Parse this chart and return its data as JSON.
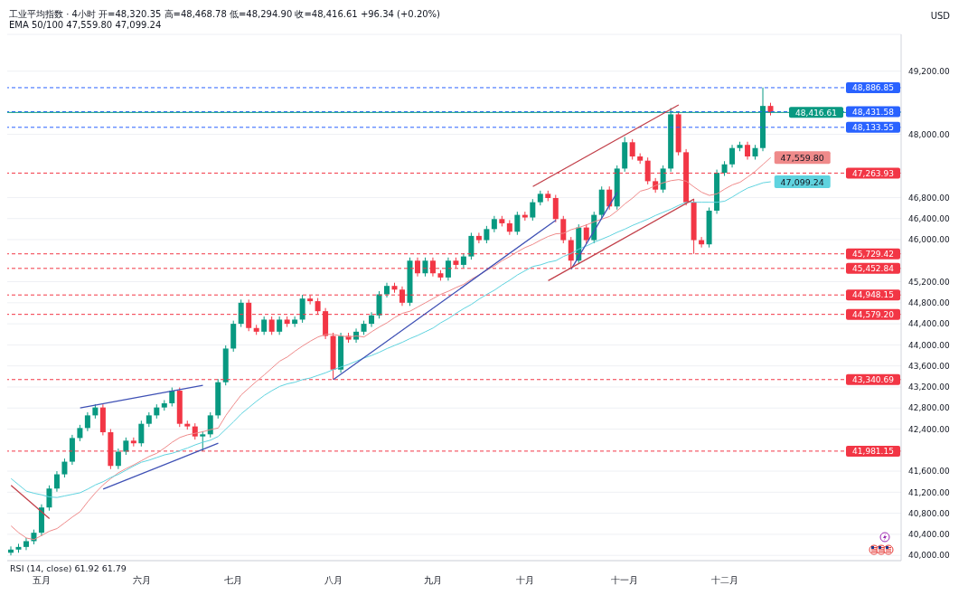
{
  "chart_data": {
    "type": "candlestick",
    "title": "工业平均指数 · 4小时 开=48,320.35 高=48,468.78 低=48,294.90 收=48,416.61 +96.34 (+0.20%)",
    "subtitle": "EMA 50/100 47,559.80 47,099.24",
    "ylabel": "USD",
    "categories": [
      null,
      null,
      null,
      null,
      "五月",
      null,
      null,
      null,
      null,
      null,
      null,
      null,
      null,
      null,
      null,
      null,
      null,
      "六月",
      null,
      null,
      null,
      null,
      null,
      null,
      null,
      null,
      null,
      null,
      null,
      "七月",
      null,
      null,
      null,
      null,
      null,
      null,
      null,
      null,
      null,
      null,
      null,
      null,
      "八月",
      null,
      null,
      null,
      null,
      null,
      null,
      null,
      null,
      null,
      null,
      null,
      null,
      "九月",
      null,
      null,
      null,
      null,
      null,
      null,
      null,
      null,
      null,
      null,
      null,
      "十月",
      null,
      null,
      null,
      null,
      null,
      null,
      null,
      null,
      null,
      null,
      null,
      null,
      "十一月",
      null,
      null,
      null,
      null,
      null,
      null,
      null,
      null,
      null,
      null,
      null,
      null,
      "十二月",
      null,
      null,
      null,
      null,
      null,
      null
    ],
    "ohlc": [
      [
        40050,
        40170,
        40000,
        40110
      ],
      [
        40110,
        40220,
        40050,
        40160
      ],
      [
        40160,
        40330,
        40100,
        40270
      ],
      [
        40270,
        40490,
        40210,
        40430
      ],
      [
        40430,
        40970,
        40370,
        40910
      ],
      [
        40910,
        41330,
        40850,
        41270
      ],
      [
        41270,
        41600,
        41210,
        41540
      ],
      [
        41540,
        41840,
        41480,
        41780
      ],
      [
        41780,
        42290,
        41720,
        42230
      ],
      [
        42230,
        42480,
        42170,
        42420
      ],
      [
        42420,
        42720,
        42360,
        42660
      ],
      [
        42660,
        42870,
        42600,
        42810
      ],
      [
        42810,
        42870,
        42280,
        42340
      ],
      [
        42340,
        42400,
        41640,
        41700
      ],
      [
        41700,
        42030,
        41640,
        41970
      ],
      [
        41970,
        42240,
        41910,
        42180
      ],
      [
        42180,
        42240,
        42070,
        42130
      ],
      [
        42130,
        42560,
        42070,
        42500
      ],
      [
        42500,
        42720,
        42440,
        42660
      ],
      [
        42660,
        42870,
        42600,
        42810
      ],
      [
        42810,
        42950,
        42750,
        42890
      ],
      [
        42890,
        43190,
        42830,
        43130
      ],
      [
        43130,
        43190,
        42440,
        42500
      ],
      [
        42500,
        42560,
        42390,
        42450
      ],
      [
        42450,
        42510,
        42200,
        42260
      ],
      [
        42260,
        42360,
        41980,
        42300
      ],
      [
        42300,
        42720,
        42240,
        42660
      ],
      [
        42660,
        43350,
        42600,
        43290
      ],
      [
        43290,
        43990,
        43230,
        43930
      ],
      [
        43930,
        44460,
        43870,
        44400
      ],
      [
        44400,
        44860,
        44340,
        44800
      ],
      [
        44800,
        44860,
        44260,
        44320
      ],
      [
        44320,
        44380,
        44190,
        44250
      ],
      [
        44250,
        44540,
        44190,
        44480
      ],
      [
        44480,
        44540,
        44190,
        44250
      ],
      [
        44250,
        44540,
        44190,
        44480
      ],
      [
        44480,
        44540,
        44340,
        44400
      ],
      [
        44400,
        44540,
        44340,
        44480
      ],
      [
        44480,
        44950,
        44420,
        44880
      ],
      [
        44880,
        44940,
        44770,
        44830
      ],
      [
        44830,
        44890,
        44580,
        44640
      ],
      [
        44640,
        44700,
        44110,
        44170
      ],
      [
        44170,
        44230,
        43340,
        43530
      ],
      [
        43530,
        44230,
        43470,
        44170
      ],
      [
        44170,
        44230,
        44040,
        44100
      ],
      [
        44100,
        44310,
        44040,
        44250
      ],
      [
        44250,
        44460,
        44190,
        44400
      ],
      [
        44400,
        44620,
        44340,
        44560
      ],
      [
        44560,
        45020,
        44500,
        44960
      ],
      [
        44960,
        45180,
        44900,
        45120
      ],
      [
        45120,
        45180,
        44990,
        45050
      ],
      [
        45050,
        45110,
        44740,
        44800
      ],
      [
        44800,
        45660,
        44740,
        45600
      ],
      [
        45600,
        45660,
        45300,
        45360
      ],
      [
        45360,
        45660,
        45300,
        45600
      ],
      [
        45600,
        45660,
        45300,
        45360
      ],
      [
        45360,
        45420,
        45220,
        45280
      ],
      [
        45280,
        45660,
        45220,
        45600
      ],
      [
        45600,
        45660,
        45460,
        45520
      ],
      [
        45520,
        45740,
        45460,
        45680
      ],
      [
        45680,
        46130,
        45620,
        46070
      ],
      [
        46070,
        46130,
        45930,
        45990
      ],
      [
        45990,
        46260,
        45930,
        46200
      ],
      [
        46200,
        46450,
        46140,
        46390
      ],
      [
        46390,
        46450,
        46250,
        46310
      ],
      [
        46310,
        46370,
        46090,
        46150
      ],
      [
        46150,
        46530,
        46090,
        46470
      ],
      [
        46470,
        46530,
        46360,
        46420
      ],
      [
        46420,
        46770,
        46360,
        46710
      ],
      [
        46710,
        46930,
        46650,
        46870
      ],
      [
        46870,
        46930,
        46730,
        46790
      ],
      [
        46790,
        46850,
        46330,
        46390
      ],
      [
        46390,
        46450,
        45930,
        45990
      ],
      [
        45990,
        46050,
        45450,
        45600
      ],
      [
        45600,
        46290,
        45540,
        46230
      ],
      [
        46230,
        46290,
        45930,
        45990
      ],
      [
        45990,
        46530,
        45930,
        46470
      ],
      [
        46470,
        47010,
        46410,
        46950
      ],
      [
        46950,
        47010,
        46570,
        46630
      ],
      [
        46630,
        47410,
        46570,
        47350
      ],
      [
        47350,
        47950,
        47290,
        47850
      ],
      [
        47850,
        47910,
        47520,
        47580
      ],
      [
        47580,
        47640,
        47440,
        47500
      ],
      [
        47500,
        47560,
        47050,
        47110
      ],
      [
        47110,
        47170,
        46890,
        46950
      ],
      [
        46950,
        47410,
        46890,
        47350
      ],
      [
        47350,
        48500,
        47290,
        48380
      ],
      [
        48380,
        48440,
        47600,
        47660
      ],
      [
        47660,
        47720,
        46650,
        46710
      ],
      [
        46710,
        46770,
        45730,
        45990
      ],
      [
        45990,
        46050,
        45850,
        45910
      ],
      [
        45910,
        46610,
        45850,
        46550
      ],
      [
        46550,
        47330,
        46490,
        47270
      ],
      [
        47270,
        47490,
        47210,
        47430
      ],
      [
        47430,
        47800,
        47370,
        47740
      ],
      [
        47740,
        47860,
        47680,
        47800
      ],
      [
        47800,
        47860,
        47520,
        47580
      ],
      [
        47580,
        47800,
        47520,
        47740
      ],
      [
        47740,
        48890,
        47680,
        48540
      ],
      [
        48540,
        48600,
        48360,
        48420
      ]
    ],
    "colors": [
      "#089981",
      "#089981",
      "#089981",
      "#089981",
      "#089981",
      "#089981",
      "#089981",
      "#089981",
      "#089981",
      "#089981",
      "#089981",
      "#089981",
      "#f23645",
      "#f23645",
      "#089981",
      "#089981",
      "#f23645",
      "#089981",
      "#089981",
      "#089981",
      "#089981",
      "#089981",
      "#f23645",
      "#f23645",
      "#f23645",
      "#089981",
      "#089981",
      "#089981",
      "#089981",
      "#089981",
      "#089981",
      "#f23645",
      "#f23645",
      "#089981",
      "#f23645",
      "#089981",
      "#f23645",
      "#089981",
      "#089981",
      "#f23645",
      "#f23645",
      "#f23645",
      "#f23645",
      "#089981",
      "#f23645",
      "#089981",
      "#089981",
      "#089981",
      "#089981",
      "#089981",
      "#f23645",
      "#f23645",
      "#089981",
      "#f23645",
      "#089981",
      "#f23645",
      "#f23645",
      "#089981",
      "#f23645",
      "#089981",
      "#089981",
      "#f23645",
      "#089981",
      "#089981",
      "#f23645",
      "#f23645",
      "#089981",
      "#f23645",
      "#089981",
      "#089981",
      "#f23645",
      "#f23645",
      "#f23645",
      "#f23645",
      "#089981",
      "#f23645",
      "#089981",
      "#089981",
      "#f23645",
      "#089981",
      "#089981",
      "#f23645",
      "#f23645",
      "#f23645",
      "#f23645",
      "#089981",
      "#089981",
      "#f23645",
      "#f23645",
      "#f23645",
      "#f23645",
      "#089981",
      "#089981",
      "#089981",
      "#089981",
      "#089981",
      "#f23645",
      "#089981",
      "#089981",
      "#f23645"
    ],
    "series": [
      {
        "type": "line",
        "color": "#ef8a8a",
        "values": [
          40560,
          40430,
          40330,
          40300,
          40380,
          40460,
          40510,
          40620,
          40730,
          40830,
          41020,
          41190,
          41340,
          41460,
          41570,
          41650,
          41720,
          41800,
          41880,
          41940,
          42040,
          42150,
          42240,
          42290,
          42320,
          42350,
          42390,
          42420,
          42660,
          42860,
          43050,
          43180,
          43310,
          43430,
          43560,
          43690,
          43770,
          43880,
          43980,
          44070,
          44150,
          44200,
          44200,
          44170,
          44150,
          44170,
          44150,
          44250,
          44340,
          44420,
          44520,
          44600,
          44640,
          44720,
          44800,
          44880,
          44960,
          45020,
          45090,
          45150,
          45250,
          45330,
          45420,
          45500,
          45600,
          45680,
          45770,
          45850,
          45910,
          45990,
          46060,
          46110,
          46120,
          46190,
          46230,
          46280,
          46340,
          46390,
          46440,
          46550,
          46680,
          46790,
          46920,
          46960,
          47030,
          47080,
          47120,
          47140,
          47110,
          47000,
          46900,
          46840,
          46870,
          46960,
          47040,
          47090,
          47190,
          47300,
          47430,
          47559.8
        ],
        "value_labels": [
          null,
          null,
          null,
          null,
          null,
          null,
          null,
          null,
          null,
          null,
          null,
          null,
          null,
          null,
          null,
          null,
          null,
          null,
          null,
          null,
          null,
          null,
          null,
          null,
          null,
          null,
          null,
          null,
          null,
          null,
          null,
          null,
          null,
          null,
          null,
          null,
          null,
          null,
          null,
          null,
          null,
          null,
          null,
          null,
          null,
          null,
          null,
          null,
          null,
          null,
          null,
          null,
          null,
          null,
          null,
          null,
          null,
          null,
          null,
          null,
          null,
          null,
          null,
          null,
          null,
          null,
          null,
          null,
          null,
          null,
          null,
          null,
          null,
          null,
          null,
          null,
          null,
          null,
          null,
          null,
          null,
          null,
          null,
          null,
          null,
          null,
          null,
          null,
          null,
          null,
          null,
          null,
          null,
          null,
          null,
          null,
          null,
          null,
          null,
          "47,559.80"
        ]
      },
      {
        "type": "line",
        "color": "#5fd3df",
        "values": [
          41460,
          41340,
          41220,
          41180,
          41150,
          41110,
          41100,
          41130,
          41160,
          41190,
          41260,
          41340,
          41400,
          41480,
          41540,
          41620,
          41700,
          41770,
          41810,
          41860,
          41910,
          41940,
          41990,
          42040,
          42100,
          42150,
          42190,
          42260,
          42400,
          42540,
          42690,
          42810,
          42930,
          43040,
          43130,
          43210,
          43260,
          43290,
          43340,
          43370,
          43420,
          43470,
          43530,
          43580,
          43630,
          43690,
          43750,
          43800,
          43860,
          43930,
          43990,
          44050,
          44120,
          44180,
          44250,
          44320,
          44420,
          44500,
          44600,
          44690,
          44770,
          44870,
          44960,
          45040,
          45140,
          45230,
          45330,
          45410,
          45490,
          45520,
          45570,
          45600,
          45680,
          45740,
          45820,
          45880,
          45950,
          46010,
          46070,
          46140,
          46200,
          46270,
          46330,
          46390,
          46460,
          46520,
          46580,
          46650,
          46710,
          46710,
          46710,
          46710,
          46710,
          46730,
          46810,
          46900,
          46980,
          47030,
          47080,
          47099.24
        ],
        "value_labels": [
          null,
          null,
          null,
          null,
          null,
          null,
          null,
          null,
          null,
          null,
          null,
          null,
          null,
          null,
          null,
          null,
          null,
          null,
          null,
          null,
          null,
          null,
          null,
          null,
          null,
          null,
          null,
          null,
          null,
          null,
          null,
          null,
          null,
          null,
          null,
          null,
          null,
          null,
          null,
          null,
          null,
          null,
          null,
          null,
          null,
          null,
          null,
          null,
          null,
          null,
          null,
          null,
          null,
          null,
          null,
          null,
          null,
          null,
          null,
          null,
          null,
          null,
          null,
          null,
          null,
          null,
          null,
          null,
          null,
          null,
          null,
          null,
          null,
          null,
          null,
          null,
          null,
          null,
          null,
          null,
          null,
          null,
          null,
          null,
          null,
          null,
          null,
          null,
          null,
          null,
          null,
          null,
          null,
          null,
          null,
          null,
          null,
          null,
          null,
          "47,099.24"
        ]
      },
      {
        "type": "line",
        "color": "#c2404a",
        "values": [
          41330,
          null,
          null,
          null,
          null,
          40700,
          null,
          null,
          null,
          null,
          null,
          null,
          null,
          null,
          null,
          null,
          null,
          null,
          null,
          null,
          null,
          null,
          null,
          null,
          null,
          null,
          null,
          null,
          null,
          null,
          null,
          null,
          null,
          null,
          null,
          null,
          null,
          null,
          null,
          null,
          null,
          null,
          null,
          null,
          null,
          null,
          null,
          null,
          null,
          null,
          null,
          null,
          null,
          null,
          null,
          null,
          null,
          null,
          null,
          null,
          null,
          null,
          null,
          null,
          null,
          null,
          null,
          null,
          null,
          null,
          null,
          null,
          null,
          null,
          null,
          null,
          null,
          null,
          null,
          null,
          null,
          null,
          null,
          null,
          null,
          null,
          null,
          null,
          null,
          null,
          null,
          null,
          null,
          null,
          null,
          null,
          null,
          null,
          null,
          null
        ]
      },
      {
        "type": "line",
        "color": "#3f51b5",
        "values": [
          null,
          null,
          null,
          null,
          null,
          null,
          null,
          null,
          null,
          42800,
          null,
          null,
          null,
          null,
          null,
          null,
          null,
          null,
          null,
          null,
          null,
          null,
          null,
          null,
          null,
          43230,
          null,
          null,
          null,
          null,
          null,
          null,
          null,
          null,
          null,
          null,
          null,
          null,
          null,
          null,
          null,
          null,
          null,
          null,
          null,
          null,
          null,
          null,
          null,
          null,
          null,
          null,
          null,
          null,
          null,
          null,
          null,
          null,
          null,
          null,
          null,
          null,
          null,
          null,
          null,
          null,
          null,
          null,
          null,
          null,
          null,
          null,
          null,
          null,
          null,
          null,
          null,
          null,
          null,
          null,
          null,
          null,
          null,
          null,
          null,
          null,
          null,
          null,
          null,
          null,
          null,
          null,
          null,
          null,
          null,
          null,
          null,
          null,
          null,
          null
        ]
      },
      {
        "type": "line",
        "color": "#3f51b5",
        "values": [
          null,
          null,
          null,
          null,
          null,
          null,
          null,
          null,
          null,
          null,
          null,
          null,
          41260,
          null,
          null,
          null,
          null,
          null,
          null,
          null,
          null,
          null,
          null,
          null,
          null,
          null,
          null,
          42130,
          null,
          null,
          null,
          null,
          null,
          null,
          null,
          null,
          null,
          null,
          null,
          null,
          null,
          null,
          null,
          null,
          null,
          null,
          null,
          null,
          null,
          null,
          null,
          null,
          null,
          null,
          null,
          null,
          null,
          null,
          null,
          null,
          null,
          null,
          null,
          null,
          null,
          null,
          null,
          null,
          null,
          null,
          null,
          null,
          null,
          null,
          null,
          null,
          null,
          null,
          null,
          null,
          null,
          null,
          null,
          null,
          null,
          null,
          null,
          null,
          null,
          null,
          null,
          null,
          null,
          null,
          null,
          null,
          null,
          null,
          null,
          null
        ]
      },
      {
        "type": "line",
        "color": "#3f51b5",
        "values": [
          null,
          null,
          null,
          null,
          null,
          null,
          null,
          null,
          null,
          null,
          null,
          null,
          null,
          null,
          null,
          null,
          null,
          null,
          null,
          null,
          null,
          null,
          null,
          null,
          null,
          null,
          null,
          null,
          null,
          null,
          null,
          null,
          null,
          null,
          null,
          null,
          null,
          null,
          null,
          null,
          null,
          null,
          43340,
          null,
          null,
          null,
          null,
          null,
          null,
          null,
          null,
          null,
          null,
          null,
          null,
          null,
          null,
          null,
          null,
          null,
          null,
          null,
          null,
          null,
          null,
          null,
          null,
          null,
          null,
          null,
          null,
          46370,
          null,
          null,
          null,
          null,
          null,
          null,
          null,
          null,
          null,
          null,
          null,
          null,
          null,
          null,
          null,
          null,
          null,
          null,
          null,
          null,
          null,
          null,
          null,
          null,
          null,
          null,
          null,
          null
        ]
      },
      {
        "type": "line",
        "color": "#3f51b5",
        "values": [
          null,
          null,
          null,
          null,
          null,
          null,
          null,
          null,
          null,
          null,
          null,
          null,
          null,
          null,
          null,
          null,
          null,
          null,
          null,
          null,
          null,
          null,
          null,
          null,
          null,
          null,
          null,
          null,
          null,
          null,
          null,
          null,
          null,
          null,
          null,
          null,
          null,
          null,
          null,
          null,
          null,
          null,
          null,
          null,
          null,
          null,
          null,
          null,
          null,
          null,
          null,
          null,
          null,
          null,
          null,
          null,
          null,
          null,
          null,
          null,
          null,
          null,
          null,
          null,
          null,
          null,
          null,
          null,
          null,
          null,
          null,
          null,
          null,
          45440,
          null,
          null,
          null,
          null,
          null,
          46900,
          null,
          null,
          null,
          null,
          null,
          null,
          null,
          null,
          null,
          null,
          null,
          null,
          null,
          null,
          null,
          null,
          null,
          null,
          null,
          null
        ]
      },
      {
        "type": "line",
        "color": "#c2404a",
        "values": [
          null,
          null,
          null,
          null,
          null,
          null,
          null,
          null,
          null,
          null,
          null,
          null,
          null,
          null,
          null,
          null,
          null,
          null,
          null,
          null,
          null,
          null,
          null,
          null,
          null,
          null,
          null,
          null,
          null,
          null,
          null,
          null,
          null,
          null,
          null,
          null,
          null,
          null,
          null,
          null,
          null,
          null,
          null,
          null,
          null,
          null,
          null,
          null,
          null,
          null,
          null,
          null,
          null,
          null,
          null,
          null,
          null,
          null,
          null,
          null,
          null,
          null,
          null,
          null,
          null,
          null,
          null,
          null,
          47010,
          null,
          null,
          null,
          null,
          null,
          null,
          null,
          null,
          null,
          null,
          null,
          null,
          null,
          null,
          null,
          null,
          null,
          null,
          48560,
          null,
          null,
          null,
          null,
          null,
          null,
          null,
          null,
          null,
          null,
          null,
          null
        ]
      },
      {
        "type": "line",
        "color": "#c2404a",
        "values": [
          null,
          null,
          null,
          null,
          null,
          null,
          null,
          null,
          null,
          null,
          null,
          null,
          null,
          null,
          null,
          null,
          null,
          null,
          null,
          null,
          null,
          null,
          null,
          null,
          null,
          null,
          null,
          null,
          null,
          null,
          null,
          null,
          null,
          null,
          null,
          null,
          null,
          null,
          null,
          null,
          null,
          null,
          null,
          null,
          null,
          null,
          null,
          null,
          null,
          null,
          null,
          null,
          null,
          null,
          null,
          null,
          null,
          null,
          null,
          null,
          null,
          null,
          null,
          null,
          null,
          null,
          null,
          null,
          null,
          null,
          45220,
          null,
          null,
          null,
          null,
          null,
          null,
          null,
          null,
          null,
          null,
          null,
          null,
          null,
          null,
          null,
          null,
          null,
          null,
          46770,
          null,
          null,
          null,
          null,
          null,
          null,
          null,
          null,
          null,
          null
        ]
      }
    ],
    "ylim": [
      39900,
      49900
    ],
    "yticks": [
      {
        "value": 40000,
        "label": "40,000.00"
      },
      {
        "value": 40400,
        "label": "40,400.00"
      },
      {
        "value": 40800,
        "label": "40,800.00"
      },
      {
        "value": 41200,
        "label": "41,200.00"
      },
      {
        "value": 41600,
        "label": "41,600.00"
      },
      {
        "value": 42400,
        "label": "42,400.00"
      },
      {
        "value": 42800,
        "label": "42,800.00"
      },
      {
        "value": 43200,
        "label": "43,200.00"
      },
      {
        "value": 43600,
        "label": "43,600.00"
      },
      {
        "value": 44000,
        "label": "44,000.00"
      },
      {
        "value": 44400,
        "label": "44,400.00"
      },
      {
        "value": 44800,
        "label": "44,800.00"
      },
      {
        "value": 45200,
        "label": "45,200.00"
      },
      {
        "value": 46000,
        "label": "46,000.00"
      },
      {
        "value": 46400,
        "label": "46,400.00"
      },
      {
        "value": 46800,
        "label": "46,800.00"
      },
      {
        "value": 48000,
        "label": "48,000.00"
      },
      {
        "value": 49200,
        "label": "49,200.00"
      }
    ],
    "grid": "y",
    "ref_lines": [
      {
        "axis": "y",
        "value": 48886.85,
        "label": "48,886.85",
        "color": "#2962ff",
        "line_style": "dashed"
      },
      {
        "axis": "y",
        "value": 48431.58,
        "label": "48,431.58",
        "color": "#2962ff",
        "line_style": "dashed"
      },
      {
        "axis": "y",
        "value": 48416.61,
        "label": "48,416.61",
        "color": "#089981",
        "line_style": "solid"
      },
      {
        "axis": "y",
        "value": 48133.55,
        "label": "48,133.55",
        "color": "#2962ff",
        "line_style": "dashed"
      },
      {
        "axis": "y",
        "value": 47263.93,
        "label": "47,263.93",
        "color": "#f23645",
        "line_style": "dashed"
      },
      {
        "axis": "y",
        "value": 45729.42,
        "label": "45,729.42",
        "color": "#f23645",
        "line_style": "dashed"
      },
      {
        "axis": "y",
        "value": 45452.84,
        "label": "45,452.84",
        "color": "#f23645",
        "line_style": "dashed"
      },
      {
        "axis": "y",
        "value": 44948.15,
        "label": "44,948.15",
        "color": "#f23645",
        "line_style": "dashed"
      },
      {
        "axis": "y",
        "value": 44579.2,
        "label": "44,579.20",
        "color": "#f23645",
        "line_style": "dashed"
      },
      {
        "axis": "y",
        "value": 43340.69,
        "label": "43,340.69",
        "color": "#f23645",
        "line_style": "dashed"
      },
      {
        "axis": "y",
        "value": 41981.15,
        "label": "41,981.15",
        "color": "#f23645",
        "line_style": "dashed"
      }
    ],
    "annotations": [
      "RSI (14, close) 61.92 61.79"
    ]
  }
}
